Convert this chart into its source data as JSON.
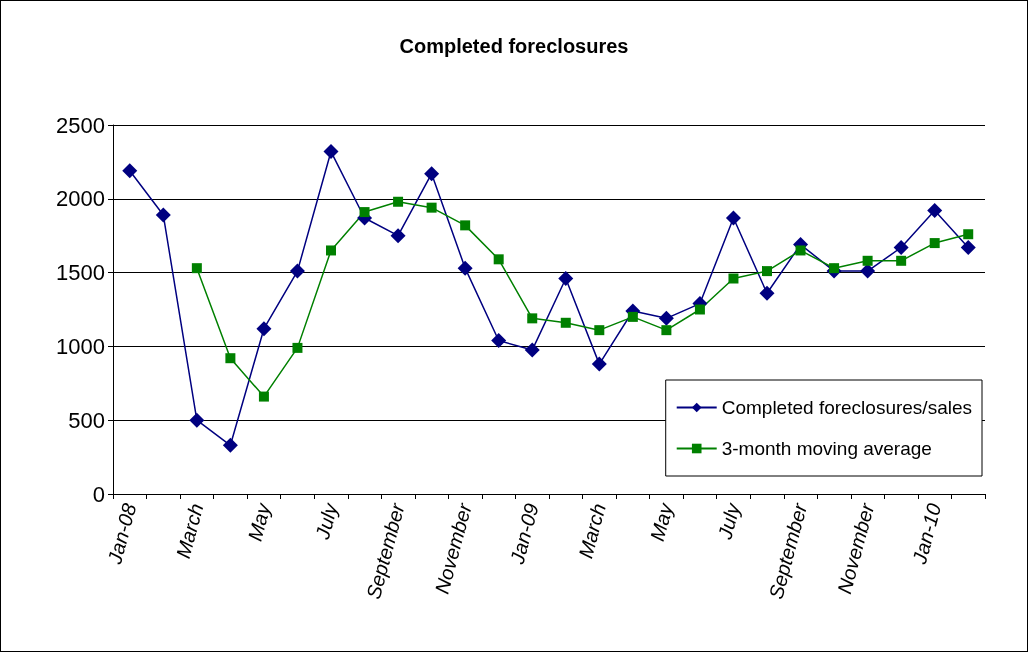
{
  "chart_data": {
    "type": "line",
    "title": "Completed foreclosures",
    "categories": [
      "Jan-08",
      null,
      "March",
      null,
      "May",
      null,
      "July",
      null,
      "September",
      null,
      "November",
      null,
      "Jan-09",
      null,
      "March",
      null,
      "May",
      null,
      "July",
      null,
      "September",
      null,
      "November",
      null,
      "Jan-10",
      null
    ],
    "series": [
      {
        "name": "Completed foreclosures/sales",
        "color": "#000080",
        "marker": "diamond",
        "values": [
          2190,
          1890,
          500,
          330,
          1120,
          1510,
          2320,
          1870,
          1750,
          2170,
          1530,
          1040,
          975,
          1460,
          880,
          1240,
          1190,
          1290,
          1870,
          1360,
          1690,
          1510,
          1510,
          1670,
          1920,
          1670
        ]
      },
      {
        "name": "3-month moving average",
        "color": "#008000",
        "marker": "square",
        "values": [
          null,
          null,
          1530,
          920,
          660,
          990,
          1650,
          1910,
          1980,
          1940,
          1820,
          1590,
          1190,
          1160,
          1110,
          1200,
          1110,
          1250,
          1460,
          1510,
          1650,
          1530,
          1580,
          1580,
          1700,
          1760
        ]
      }
    ],
    "ylim": [
      0,
      2500
    ],
    "yticks": [
      0,
      500,
      1000,
      1500,
      2000,
      2500
    ],
    "grid": "y",
    "legend": "bottom right",
    "line_style": "solid"
  }
}
